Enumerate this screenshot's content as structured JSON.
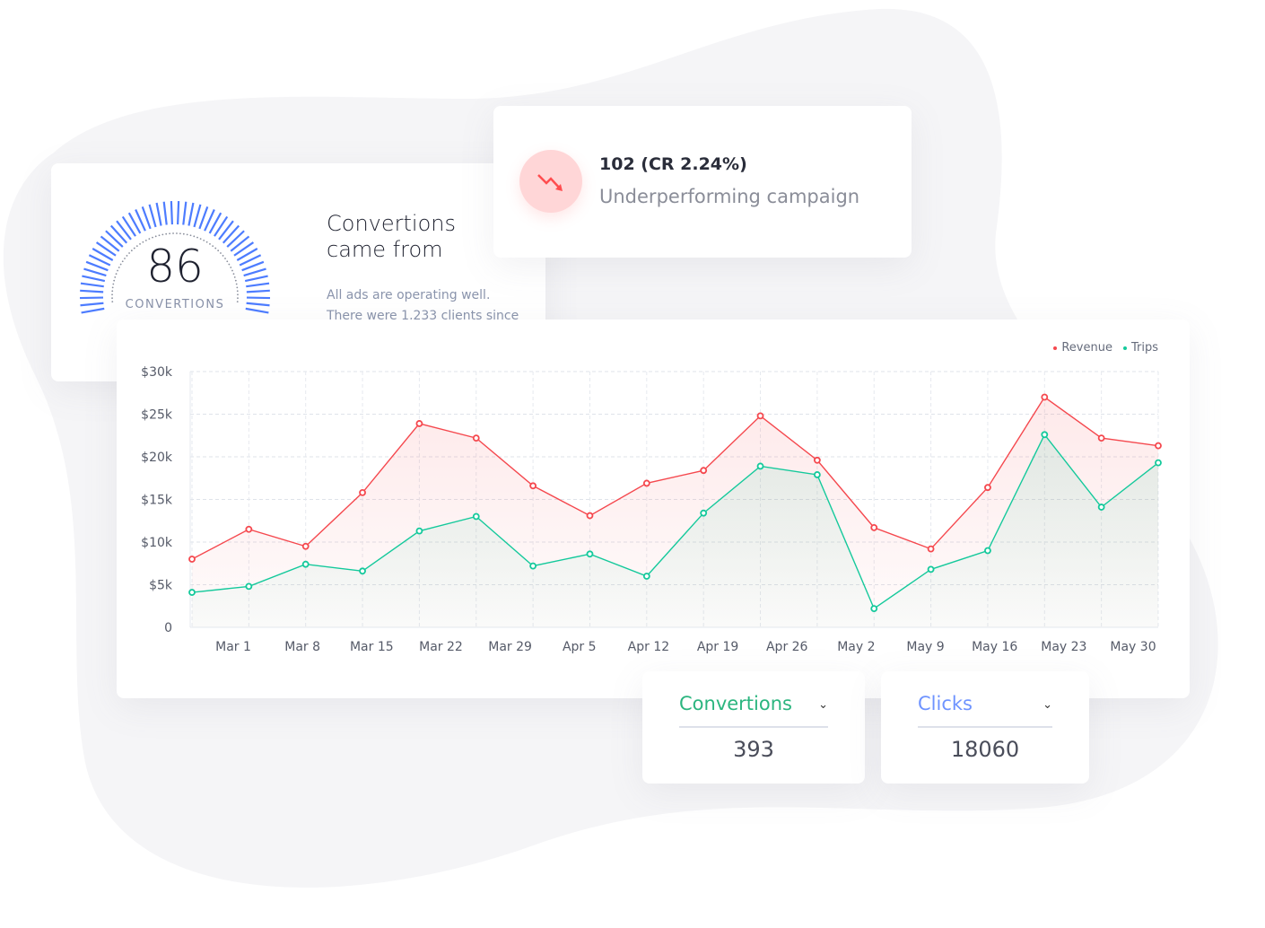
{
  "gauge": {
    "value": "86",
    "label": "CONVERTIONS",
    "color": "#4d7cff"
  },
  "conversions_info": {
    "title_line1": "Convertions",
    "title_line2": "came from",
    "desc_line1": "All ads are operating well.",
    "desc_line2": "There were 1,233 clients since"
  },
  "alert": {
    "icon": "trend-down-icon",
    "title": "102 (CR 2.24%)",
    "subtitle": "Underperforming campaign",
    "color": "#ff4d4f"
  },
  "dropdowns": [
    {
      "label": "Convertions",
      "value": "393",
      "color": "#2bb57f"
    },
    {
      "label": "Clicks",
      "value": "18060",
      "color": "#6e93ff"
    }
  ],
  "chart_data": {
    "type": "line",
    "x_tick_labels": [
      "Mar 1",
      "Mar 8",
      "Mar 15",
      "Mar 22",
      "Mar 29",
      "Apr 5",
      "Apr 12",
      "Apr 19",
      "Apr 26",
      "May 2",
      "May 9",
      "May 16",
      "May 23",
      "May 30"
    ],
    "y_tick_labels": [
      "0",
      "$5k",
      "$10k",
      "$15k",
      "$20k",
      "$25k",
      "$30k"
    ],
    "ylim": [
      0,
      30000
    ],
    "grid": true,
    "legend_placement": "top-right",
    "series": [
      {
        "name": "Revenue",
        "color": "#f5484e",
        "values": [
          8000,
          11500,
          9500,
          15800,
          23900,
          22200,
          16600,
          13100,
          16900,
          18400,
          24800,
          19600,
          11700,
          9200,
          16400,
          27000,
          22200,
          21300
        ]
      },
      {
        "name": "Trips",
        "color": "#14c99b",
        "values": [
          4100,
          4800,
          7400,
          6600,
          11300,
          13000,
          7200,
          8600,
          6000,
          13400,
          18900,
          17900,
          2200,
          6800,
          9000,
          22600,
          14100,
          19300
        ]
      }
    ]
  }
}
